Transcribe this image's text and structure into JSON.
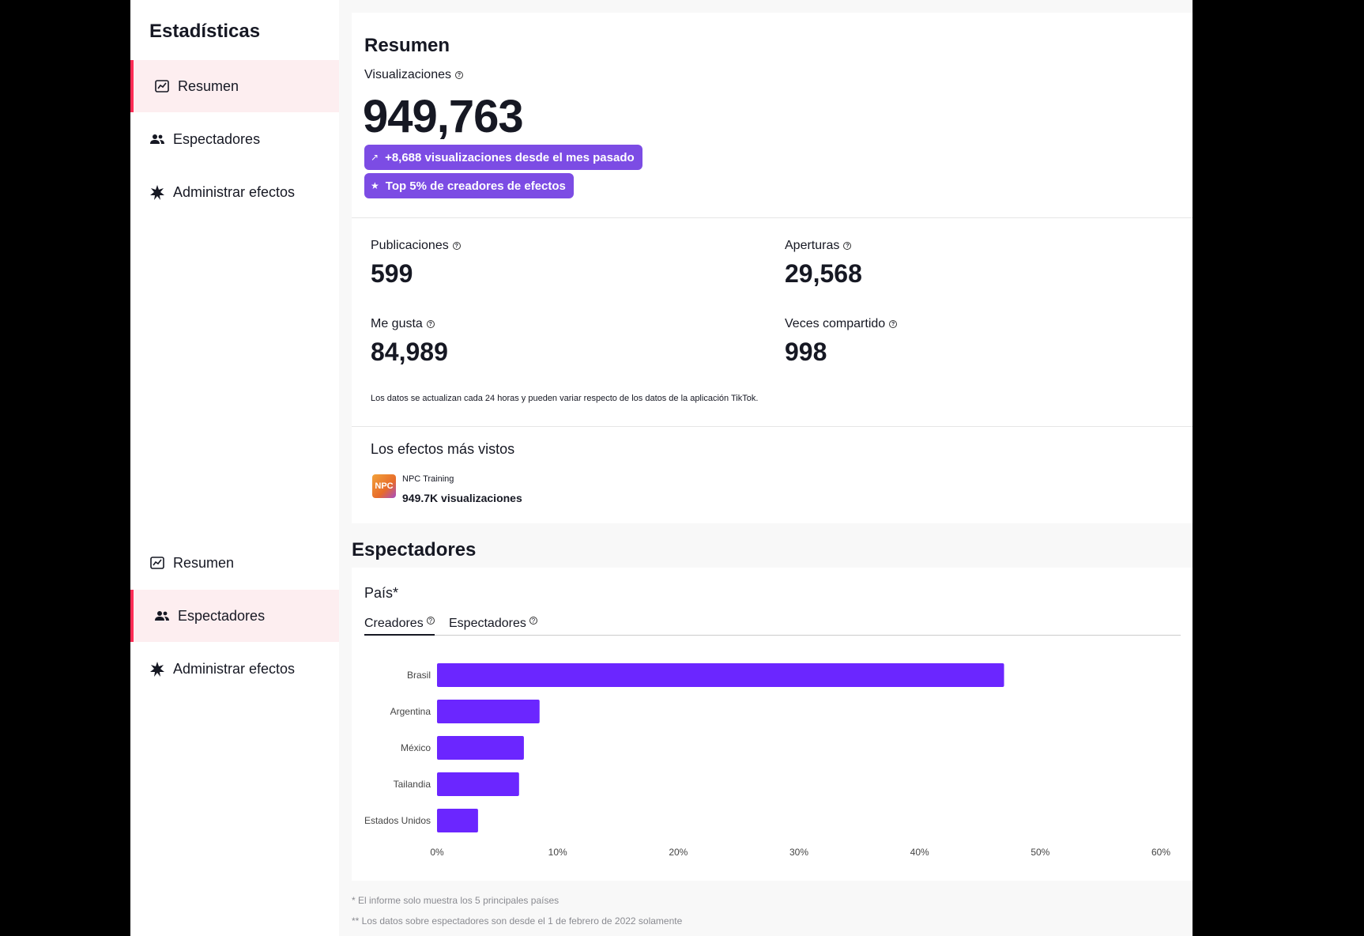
{
  "sidebar_top": {
    "title": "Estadísticas",
    "items": [
      {
        "label": "Resumen",
        "icon": "chart-icon"
      },
      {
        "label": "Espectadores",
        "icon": "users-icon"
      },
      {
        "label": "Administrar efectos",
        "icon": "effects-icon"
      }
    ],
    "active": 0
  },
  "sidebar_bottom": {
    "items": [
      {
        "label": "Resumen",
        "icon": "chart-icon"
      },
      {
        "label": "Espectadores",
        "icon": "users-icon"
      },
      {
        "label": "Administrar efectos",
        "icon": "effects-icon"
      }
    ],
    "active": 1
  },
  "summary": {
    "title": "Resumen",
    "views_label": "Visualizaciones",
    "views_value": "949,763",
    "badge_growth": "+8,688 visualizaciones desde el mes pasado",
    "badge_top": "Top 5% de creadores de efectos",
    "stats": {
      "posts_label": "Publicaciones",
      "posts_value": "599",
      "opens_label": "Aperturas",
      "opens_value": "29,568",
      "likes_label": "Me gusta",
      "likes_value": "84,989",
      "shares_label": "Veces compartido",
      "shares_value": "998"
    },
    "note": "Los datos se actualizan cada 24 horas y pueden variar respecto de los datos de la aplicación TikTok.",
    "top_effects_title": "Los efectos más vistos",
    "top_effect": {
      "thumb_text": "NPC",
      "name": "NPC Training",
      "views": "949.7K visualizaciones"
    }
  },
  "audience": {
    "title": "Espectadores",
    "country_label": "País*",
    "tabs": [
      "Creadores",
      "Espectadores"
    ],
    "active_tab": 0,
    "footnote1": "* El informe solo muestra los 5 principales países",
    "footnote2": "** Los datos sobre espectadores son desde el 1 de febrero de 2022 solamente"
  },
  "colors": {
    "bar": "#6b26ff",
    "accent": "#fe2c55",
    "badge": "#7c4ce4"
  },
  "chart_data": {
    "type": "bar",
    "orientation": "horizontal",
    "categories": [
      "Brasil",
      "Argentina",
      "México",
      "Tailandia",
      "Estados Unidos"
    ],
    "values": [
      47,
      8.5,
      7.2,
      6.8,
      3.4
    ],
    "xlim": [
      0,
      60
    ],
    "xticks": [
      "0%",
      "10%",
      "20%",
      "30%",
      "40%",
      "50%",
      "60%"
    ],
    "tick_values": [
      0,
      10,
      20,
      30,
      40,
      50,
      60
    ]
  }
}
